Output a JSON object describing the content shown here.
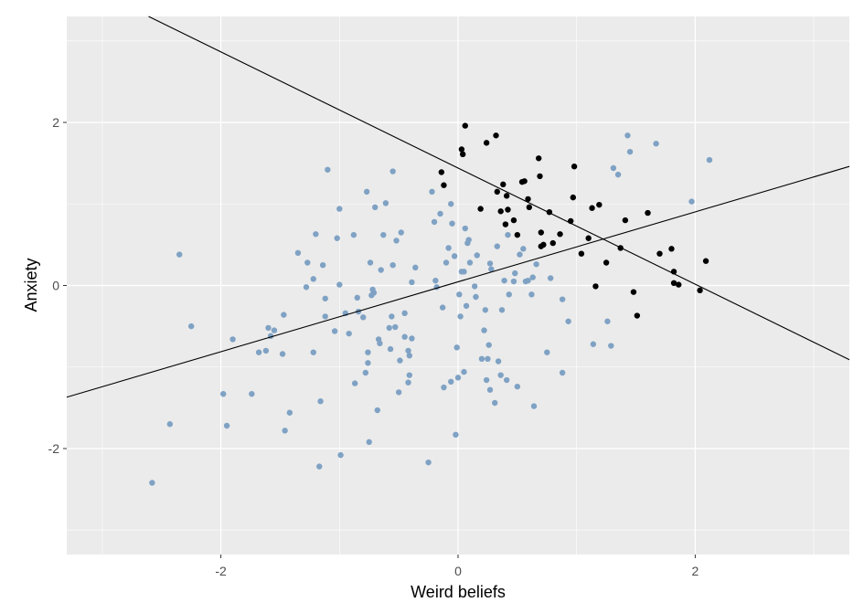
{
  "chart_data": {
    "type": "scatter",
    "title": "",
    "xlabel": "Weird beliefs",
    "ylabel": "Anxiety",
    "xlim": [
      -3.3,
      3.3
    ],
    "ylim": [
      -3.3,
      3.3
    ],
    "x_ticks": [
      -2,
      0,
      2
    ],
    "y_ticks": [
      -2,
      0,
      2
    ],
    "x_tick_labels": [
      "-2",
      "0",
      "2"
    ],
    "y_tick_labels": [
      "-2",
      "0",
      "2"
    ],
    "grid": true,
    "legend": "none",
    "colors": {
      "panel": "#ebebeb",
      "grid": "#ffffff",
      "light_points": "#7fa2c4",
      "dark_points": "#000000",
      "lines": "#000000"
    },
    "series": [
      {
        "color": "#7fa2c4",
        "points": [
          [
            -2.58,
            -2.42
          ],
          [
            -2.43,
            -1.7
          ],
          [
            -2.35,
            0.38
          ],
          [
            -2.25,
            -0.5
          ],
          [
            -1.98,
            -1.33
          ],
          [
            -1.95,
            -1.72
          ],
          [
            -1.9,
            -0.66
          ],
          [
            -1.74,
            -1.33
          ],
          [
            -1.68,
            -0.82
          ],
          [
            -1.62,
            -0.8
          ],
          [
            -1.6,
            -0.52
          ],
          [
            -1.58,
            -0.62
          ],
          [
            -1.55,
            -0.55
          ],
          [
            -1.47,
            -0.36
          ],
          [
            -1.46,
            -1.78
          ],
          [
            -1.48,
            -0.84
          ],
          [
            -1.42,
            -1.56
          ],
          [
            -1.35,
            0.4
          ],
          [
            -1.28,
            -0.02
          ],
          [
            -1.27,
            0.28
          ],
          [
            -1.22,
            0.08
          ],
          [
            -1.22,
            -0.82
          ],
          [
            -1.2,
            0.63
          ],
          [
            -1.17,
            -2.22
          ],
          [
            -1.16,
            -1.42
          ],
          [
            -1.14,
            0.25
          ],
          [
            -1.12,
            -0.16
          ],
          [
            -1.12,
            -0.38
          ],
          [
            -1.1,
            1.42
          ],
          [
            -1.04,
            -0.56
          ],
          [
            -1.02,
            0.58
          ],
          [
            -1.0,
            0.94
          ],
          [
            -1.0,
            0.01
          ],
          [
            -0.99,
            -2.08
          ],
          [
            -0.95,
            -0.34
          ],
          [
            -0.92,
            -0.59
          ],
          [
            -0.88,
            0.62
          ],
          [
            -0.87,
            -1.2
          ],
          [
            -0.85,
            -0.15
          ],
          [
            -0.84,
            -0.32
          ],
          [
            -0.8,
            -0.39
          ],
          [
            -0.78,
            -1.07
          ],
          [
            -0.77,
            1.15
          ],
          [
            -0.76,
            -0.82
          ],
          [
            -0.76,
            -0.95
          ],
          [
            -0.75,
            -1.92
          ],
          [
            -0.74,
            0.28
          ],
          [
            -0.73,
            -0.12
          ],
          [
            -0.72,
            -0.05
          ],
          [
            -0.71,
            -0.09
          ],
          [
            -0.7,
            0.96
          ],
          [
            -0.68,
            -1.53
          ],
          [
            -0.67,
            -0.66
          ],
          [
            -0.66,
            -0.71
          ],
          [
            -0.65,
            0.19
          ],
          [
            -0.63,
            0.62
          ],
          [
            -0.61,
            1.01
          ],
          [
            -0.58,
            -0.52
          ],
          [
            -0.57,
            -0.78
          ],
          [
            -0.56,
            -0.38
          ],
          [
            -0.55,
            0.25
          ],
          [
            -0.55,
            1.4
          ],
          [
            -0.53,
            -0.51
          ],
          [
            -0.52,
            0.55
          ],
          [
            -0.5,
            -1.31
          ],
          [
            -0.49,
            -0.92
          ],
          [
            -0.48,
            0.65
          ],
          [
            -0.45,
            -0.34
          ],
          [
            -0.45,
            -0.63
          ],
          [
            -0.42,
            -1.19
          ],
          [
            -0.42,
            -0.8
          ],
          [
            -0.41,
            -1.1
          ],
          [
            -0.41,
            -0.86
          ],
          [
            -0.39,
            0.04
          ],
          [
            -0.39,
            -0.65
          ],
          [
            -0.36,
            0.22
          ],
          [
            -0.25,
            -2.17
          ],
          [
            -0.22,
            1.15
          ],
          [
            -0.2,
            0.78
          ],
          [
            -0.19,
            0.06
          ],
          [
            -0.18,
            -0.02
          ],
          [
            -0.15,
            0.88
          ],
          [
            -0.13,
            -0.27
          ],
          [
            -0.12,
            -1.25
          ],
          [
            -0.1,
            0.28
          ],
          [
            -0.08,
            0.46
          ],
          [
            -0.06,
            1.0
          ],
          [
            -0.06,
            -1.18
          ],
          [
            -0.05,
            0.76
          ],
          [
            -0.03,
            0.36
          ],
          [
            -0.02,
            -1.83
          ],
          [
            -0.01,
            -0.76
          ],
          [
            0.0,
            -1.13
          ],
          [
            0.01,
            -0.11
          ],
          [
            0.02,
            -0.38
          ],
          [
            0.03,
            0.17
          ],
          [
            0.05,
            0.17
          ],
          [
            0.05,
            -1.06
          ],
          [
            0.06,
            0.7
          ],
          [
            0.07,
            -0.25
          ],
          [
            0.08,
            0.52
          ],
          [
            0.09,
            0.56
          ],
          [
            0.1,
            0.28
          ],
          [
            0.14,
            -0.01
          ],
          [
            0.15,
            -0.14
          ],
          [
            0.16,
            0.37
          ],
          [
            0.2,
            -0.9
          ],
          [
            0.22,
            -0.55
          ],
          [
            0.23,
            -0.3
          ],
          [
            0.24,
            -1.16
          ],
          [
            0.25,
            -0.9
          ],
          [
            0.26,
            -0.73
          ],
          [
            0.27,
            0.27
          ],
          [
            0.27,
            -1.28
          ],
          [
            0.28,
            0.2
          ],
          [
            0.31,
            -1.44
          ],
          [
            0.33,
            0.48
          ],
          [
            0.34,
            -0.93
          ],
          [
            0.36,
            -1.1
          ],
          [
            0.37,
            -0.3
          ],
          [
            0.39,
            0.06
          ],
          [
            0.41,
            -1.16
          ],
          [
            0.42,
            0.62
          ],
          [
            0.43,
            -0.11
          ],
          [
            0.47,
            0.05
          ],
          [
            0.48,
            0.15
          ],
          [
            0.5,
            -1.24
          ],
          [
            0.52,
            0.38
          ],
          [
            0.55,
            0.45
          ],
          [
            0.57,
            0.05
          ],
          [
            0.59,
            0.06
          ],
          [
            0.62,
            -0.11
          ],
          [
            0.63,
            0.1
          ],
          [
            0.64,
            -1.48
          ],
          [
            0.66,
            0.26
          ],
          [
            0.75,
            -0.82
          ],
          [
            0.78,
            0.09
          ],
          [
            0.88,
            -1.07
          ],
          [
            0.88,
            -0.17
          ],
          [
            0.93,
            -0.44
          ],
          [
            1.14,
            -0.72
          ],
          [
            1.26,
            -0.44
          ],
          [
            1.29,
            -0.74
          ],
          [
            1.31,
            1.44
          ],
          [
            1.35,
            1.36
          ],
          [
            1.43,
            1.84
          ],
          [
            1.45,
            1.64
          ],
          [
            1.67,
            1.74
          ],
          [
            1.97,
            1.03
          ],
          [
            2.12,
            1.54
          ]
        ]
      },
      {
        "color": "#000000",
        "points": [
          [
            -0.14,
            1.39
          ],
          [
            -0.12,
            1.23
          ],
          [
            0.03,
            1.67
          ],
          [
            0.04,
            1.61
          ],
          [
            0.06,
            1.96
          ],
          [
            0.19,
            0.94
          ],
          [
            0.24,
            1.75
          ],
          [
            0.32,
            1.84
          ],
          [
            0.33,
            1.15
          ],
          [
            0.36,
            0.91
          ],
          [
            0.38,
            1.24
          ],
          [
            0.4,
            0.75
          ],
          [
            0.41,
            1.1
          ],
          [
            0.42,
            0.93
          ],
          [
            0.47,
            0.8
          ],
          [
            0.5,
            0.62
          ],
          [
            0.54,
            1.27
          ],
          [
            0.56,
            1.28
          ],
          [
            0.59,
            1.06
          ],
          [
            0.6,
            0.96
          ],
          [
            0.68,
            1.56
          ],
          [
            0.69,
            1.34
          ],
          [
            0.7,
            0.65
          ],
          [
            0.7,
            0.48
          ],
          [
            0.72,
            0.5
          ],
          [
            0.77,
            0.9
          ],
          [
            0.8,
            0.52
          ],
          [
            0.86,
            0.63
          ],
          [
            0.95,
            0.79
          ],
          [
            0.97,
            1.08
          ],
          [
            0.98,
            1.46
          ],
          [
            1.04,
            0.39
          ],
          [
            1.1,
            0.58
          ],
          [
            1.13,
            0.95
          ],
          [
            1.16,
            -0.01
          ],
          [
            1.19,
            0.99
          ],
          [
            1.25,
            0.28
          ],
          [
            1.37,
            0.46
          ],
          [
            1.41,
            0.8
          ],
          [
            1.48,
            -0.08
          ],
          [
            1.51,
            -0.37
          ],
          [
            1.6,
            0.89
          ],
          [
            1.7,
            0.39
          ],
          [
            1.8,
            0.45
          ],
          [
            1.82,
            0.17
          ],
          [
            1.82,
            0.03
          ],
          [
            1.86,
            0.01
          ],
          [
            2.04,
            -0.06
          ],
          [
            2.09,
            0.3
          ]
        ]
      }
    ],
    "lines": [
      {
        "x": [
          -3.3,
          3.3
        ],
        "y": [
          -1.37,
          1.46
        ]
      },
      {
        "x": [
          -2.61,
          3.3
        ],
        "y": [
          3.3,
          -0.91
        ]
      }
    ]
  }
}
